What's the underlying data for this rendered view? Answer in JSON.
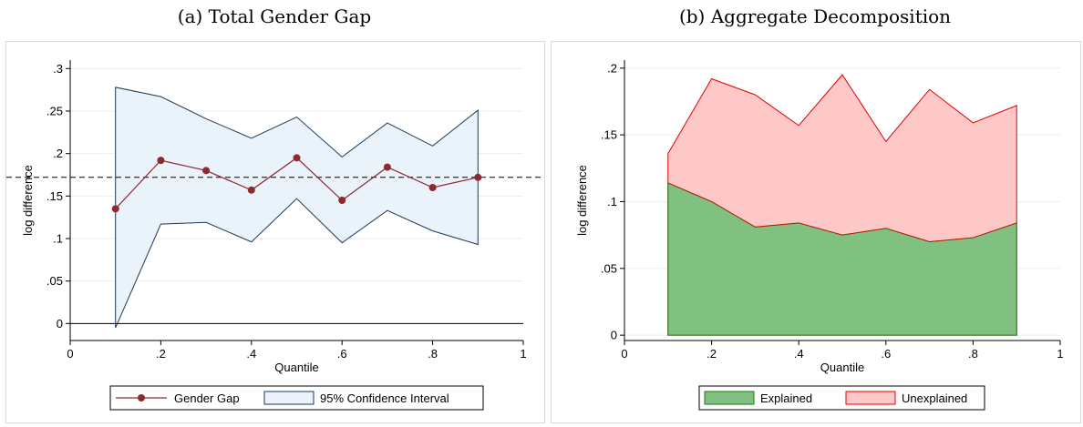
{
  "captions": {
    "a": "(a) Total Gender Gap",
    "b": "(b) Aggregate Decomposition"
  },
  "chart_data": [
    {
      "type": "line",
      "title": "(a) Total Gender Gap",
      "xlabel": "Quantile",
      "ylabel": "log difference",
      "xlim": [
        0,
        1
      ],
      "ylim": [
        -0.02,
        0.31
      ],
      "x_ticks": [
        0,
        0.2,
        0.4,
        0.6,
        0.8,
        1
      ],
      "x_tick_labels": [
        "0",
        ".2",
        ".4",
        ".6",
        ".8",
        "1"
      ],
      "y_ticks": [
        0,
        0.05,
        0.1,
        0.15,
        0.2,
        0.25,
        0.3
      ],
      "y_tick_labels": [
        "0",
        ".05",
        ".1",
        ".15",
        ".2",
        ".25",
        ".3"
      ],
      "grid": true,
      "x": [
        0.1,
        0.2,
        0.3,
        0.4,
        0.5,
        0.6,
        0.7,
        0.8,
        0.9
      ],
      "series": [
        {
          "name": "Gender Gap",
          "values": [
            0.135,
            0.192,
            0.18,
            0.157,
            0.195,
            0.145,
            0.184,
            0.16,
            0.172
          ],
          "color": "#8b2a2f"
        }
      ],
      "band": {
        "name": "95% Confidence Interval",
        "lower": [
          -0.005,
          0.117,
          0.119,
          0.096,
          0.147,
          0.095,
          0.133,
          0.109,
          0.093
        ],
        "upper": [
          0.278,
          0.267,
          0.241,
          0.218,
          0.243,
          0.196,
          0.236,
          0.209,
          0.251
        ],
        "fill": "#eaf3fa",
        "stroke": "#1a3a5c"
      },
      "reference_lines": {
        "zero": 0,
        "dashed": 0.172
      },
      "legend": [
        "Gender Gap",
        "95% Confidence Interval"
      ],
      "legend_position": "bottom"
    },
    {
      "type": "area",
      "title": "(b) Aggregate Decomposition",
      "xlabel": "Quantile",
      "ylabel": "log difference",
      "xlim": [
        0,
        1
      ],
      "ylim": [
        -0.004,
        0.206
      ],
      "x_ticks": [
        0,
        0.2,
        0.4,
        0.6,
        0.8,
        1
      ],
      "x_tick_labels": [
        "0",
        ".2",
        ".4",
        ".6",
        ".8",
        "1"
      ],
      "y_ticks": [
        0,
        0.05,
        0.1,
        0.15,
        0.2
      ],
      "y_tick_labels": [
        "0",
        ".05",
        ".1",
        ".15",
        ".2"
      ],
      "grid": true,
      "x": [
        0.1,
        0.2,
        0.3,
        0.4,
        0.5,
        0.6,
        0.7,
        0.8,
        0.9
      ],
      "series": [
        {
          "name": "Explained",
          "values": [
            0.114,
            0.1,
            0.081,
            0.084,
            0.075,
            0.08,
            0.07,
            0.073,
            0.084
          ],
          "fill": "#80c080",
          "stroke": "#1a7a1a"
        },
        {
          "name": "Unexplained",
          "values": [
            0.136,
            0.192,
            0.18,
            0.157,
            0.195,
            0.145,
            0.184,
            0.159,
            0.172
          ],
          "fill": "#ffc8c8",
          "stroke": "#e00000"
        }
      ],
      "legend": [
        "Explained",
        "Unexplained"
      ],
      "legend_position": "bottom"
    }
  ]
}
